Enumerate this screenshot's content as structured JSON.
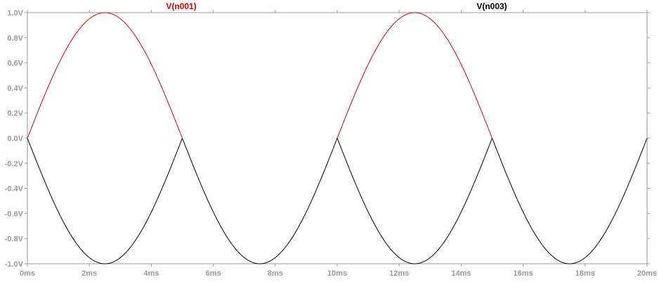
{
  "chart_data": {
    "type": "line",
    "title": "",
    "xlabel": "",
    "ylabel": "",
    "xlim": [
      0,
      20
    ],
    "ylim": [
      -1.0,
      1.0
    ],
    "x_unit": "ms",
    "y_unit": "V",
    "grid": false,
    "x_ticks": [
      "0ms",
      "2ms",
      "4ms",
      "6ms",
      "8ms",
      "10ms",
      "12ms",
      "14ms",
      "16ms",
      "18ms",
      "20ms"
    ],
    "y_ticks": [
      "1.0V",
      "0.8V",
      "0.6V",
      "0.4V",
      "0.2V",
      "0.0V",
      "-0.2V",
      "-0.4V",
      "-0.6V",
      "-0.8V",
      "-1.0V"
    ],
    "series": [
      {
        "name": "V(n001)",
        "color": "#e00000",
        "x": [
          0,
          0.5,
          1,
          1.5,
          2,
          2.5,
          3,
          3.5,
          4,
          4.5,
          5,
          10,
          10.5,
          11,
          11.5,
          12,
          12.5,
          13,
          13.5,
          14,
          14.5,
          15
        ],
        "y": [
          0,
          0.31,
          0.59,
          0.81,
          0.95,
          1.0,
          0.95,
          0.81,
          0.59,
          0.31,
          0,
          0,
          0.31,
          0.59,
          0.81,
          0.95,
          1.0,
          0.95,
          0.81,
          0.59,
          0.31,
          0
        ],
        "segments": [
          [
            0,
            5
          ],
          [
            10,
            15
          ]
        ]
      },
      {
        "name": "V(n003)",
        "color": "#000000",
        "x": [
          0,
          0.5,
          1,
          1.5,
          2,
          2.5,
          3,
          3.5,
          4,
          4.5,
          5,
          5.5,
          6,
          6.5,
          7,
          7.5,
          8,
          8.5,
          9,
          9.5,
          10,
          10.5,
          11,
          11.5,
          12,
          12.5,
          13,
          13.5,
          14,
          14.5,
          15,
          15.5,
          16,
          16.5,
          17,
          17.5,
          18,
          18.5,
          19,
          19.5,
          20
        ],
        "y": [
          0,
          -0.31,
          -0.59,
          -0.81,
          -0.95,
          -1.0,
          -0.95,
          -0.81,
          -0.59,
          -0.31,
          0,
          -0.31,
          -0.59,
          -0.81,
          -0.95,
          -1.0,
          -0.95,
          -0.81,
          -0.59,
          -0.31,
          0,
          -0.31,
          -0.59,
          -0.81,
          -0.95,
          -1.0,
          -0.95,
          -0.81,
          -0.59,
          -0.31,
          0,
          -0.31,
          -0.59,
          -0.81,
          -0.95,
          -1.0,
          -0.95,
          -0.81,
          -0.59,
          -0.31,
          0
        ]
      }
    ]
  }
}
